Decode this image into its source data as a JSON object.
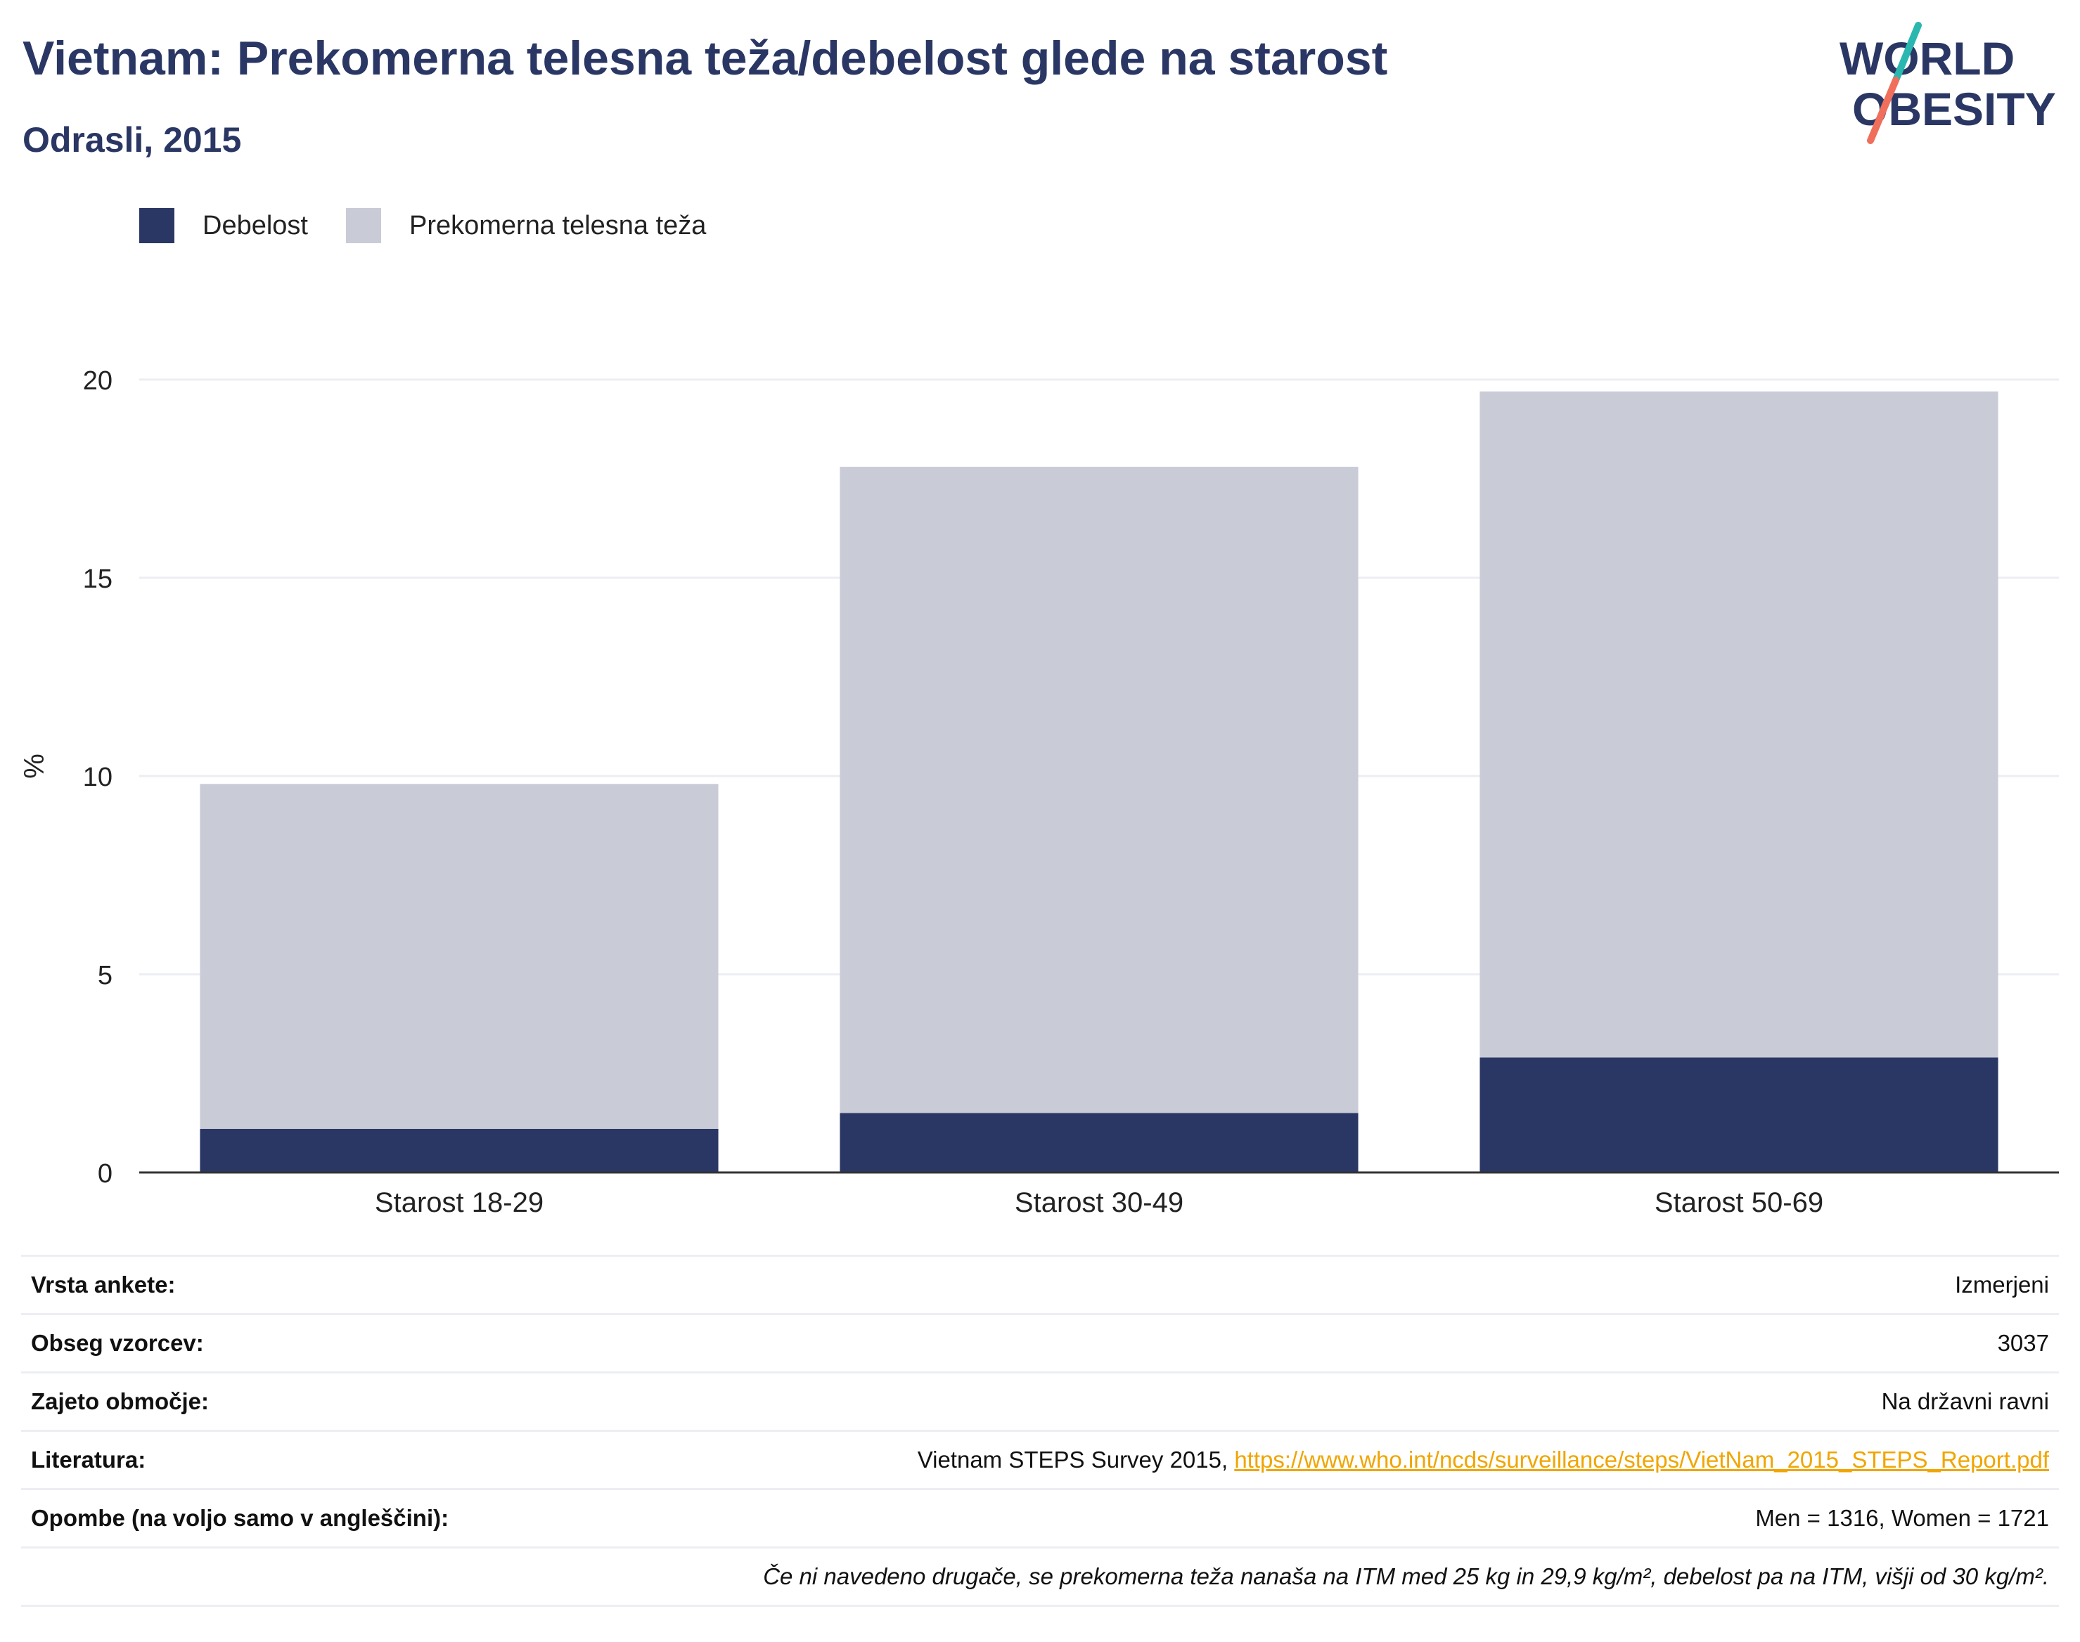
{
  "header": {
    "title": "Vietnam: Prekomerna telesna teža/debelost glede na starost",
    "subtitle": "Odrasli, 2015"
  },
  "logo": {
    "line1": "WORLD",
    "line2": "OBESITY"
  },
  "legend": [
    {
      "label": "Debelost",
      "color": "#2a3764"
    },
    {
      "label": "Prekomerna telesna teža",
      "color": "#c9cbd7"
    }
  ],
  "chart_data": {
    "type": "bar",
    "stacked": true,
    "title": "",
    "xlabel": "",
    "ylabel": "%",
    "ylim": [
      0,
      20
    ],
    "yticks": [
      0,
      5,
      10,
      15,
      20
    ],
    "grid": true,
    "legend_position": "top-left",
    "categories": [
      "Starost 18-29",
      "Starost 30-49",
      "Starost 50-69"
    ],
    "series": [
      {
        "name": "Debelost",
        "color": "#2a3764",
        "values": [
          1.1,
          1.5,
          2.9
        ]
      },
      {
        "name": "Prekomerna telesna teža",
        "color": "#c9cbd7",
        "values": [
          8.7,
          16.3,
          16.8
        ]
      }
    ]
  },
  "info": {
    "rows": [
      {
        "key": "Vrsta ankete:",
        "value": "Izmerjeni"
      },
      {
        "key": "Obseg vzorcev:",
        "value": "3037"
      },
      {
        "key": "Zajeto območje:",
        "value": "Na državni ravni"
      },
      {
        "key": "Literatura:",
        "value": "Vietnam STEPS Survey 2015, ",
        "link": "https://www.who.int/ncds/surveillance/steps/VietNam_2015_STEPS_Report.pdf"
      },
      {
        "key": "Opombe (na voljo samo v angleščini):",
        "value": "Men = 1316, Women = 1721"
      }
    ],
    "footnote": "Če ni navedeno drugače, se prekomerna teža nanaša na ITM med 25 kg in 29,9 kg/m², debelost pa na ITM, višji od 30 kg/m²."
  }
}
